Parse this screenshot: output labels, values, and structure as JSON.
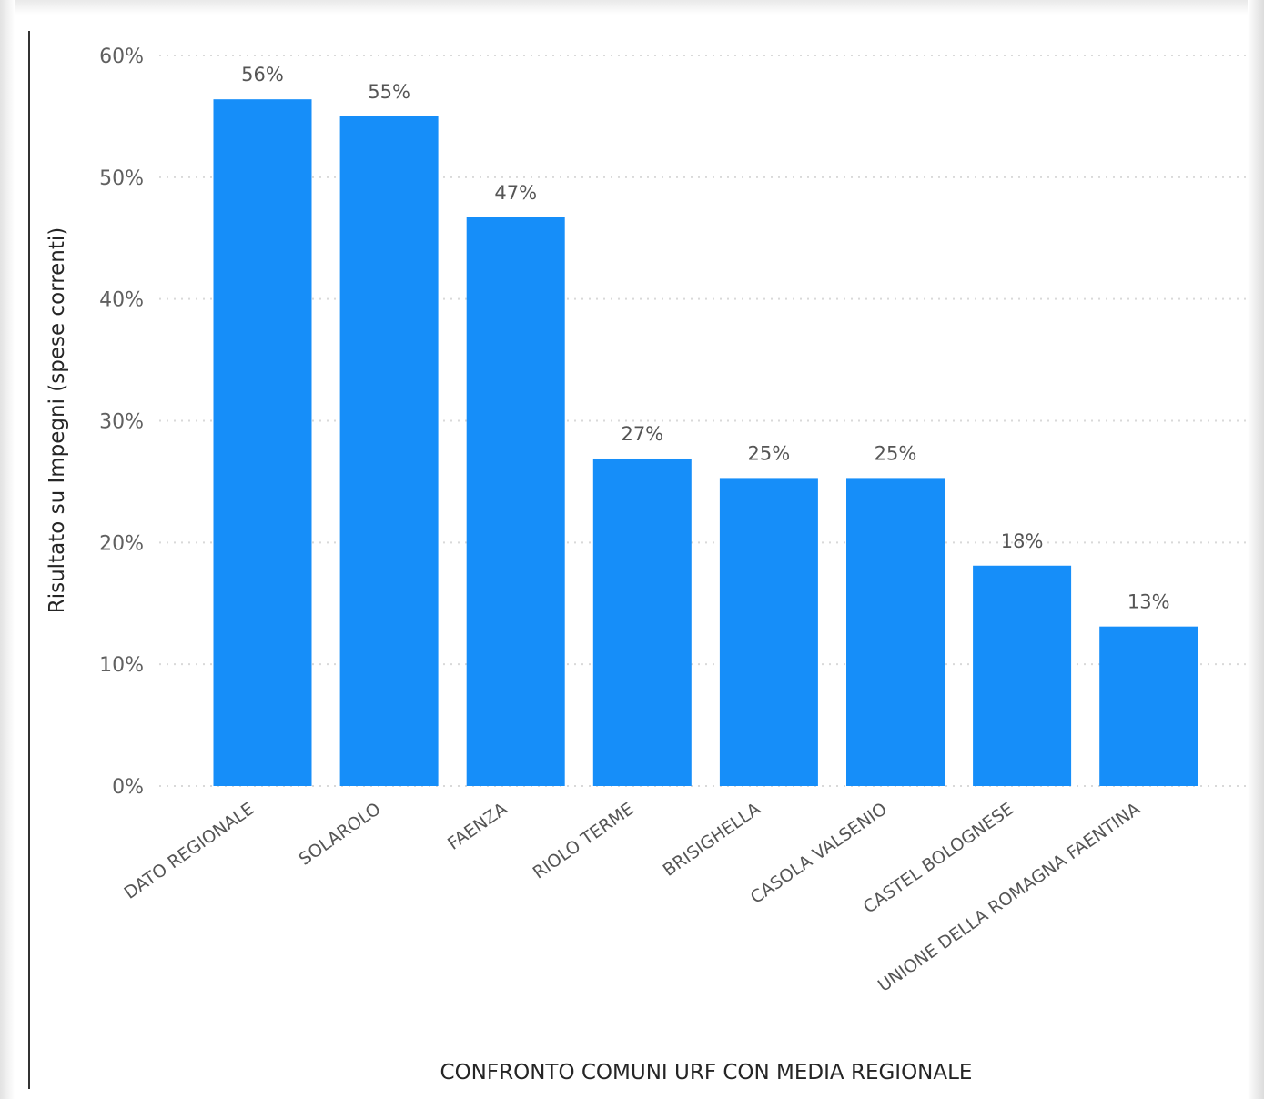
{
  "chart_data": {
    "type": "bar",
    "title": "",
    "xlabel": "CONFRONTO COMUNI URF CON MEDIA REGIONALE",
    "ylabel": "Risultato su Impegni (spese correnti)",
    "categories": [
      "DATO REGIONALE",
      "SOLAROLO",
      "FAENZA",
      "RIOLO TERME",
      "BRISIGHELLA",
      "CASOLA VALSENIO",
      "CASTEL BOLOGNESE",
      "UNIONE DELLA ROMAGNA FAENTINA"
    ],
    "values": [
      56.4,
      55.0,
      46.7,
      26.9,
      25.3,
      25.3,
      18.1,
      13.1
    ],
    "data_labels": [
      "56%",
      "55%",
      "47%",
      "27%",
      "25%",
      "25%",
      "18%",
      "13%"
    ],
    "ylim": [
      0,
      60
    ],
    "yticks": [
      0,
      10,
      20,
      30,
      40,
      50,
      60
    ],
    "ytick_labels": [
      "0%",
      "10%",
      "20%",
      "30%",
      "40%",
      "50%",
      "60%"
    ],
    "grid": true,
    "bar_color": "#168EF9",
    "grid_color": "#D9D9D9"
  }
}
